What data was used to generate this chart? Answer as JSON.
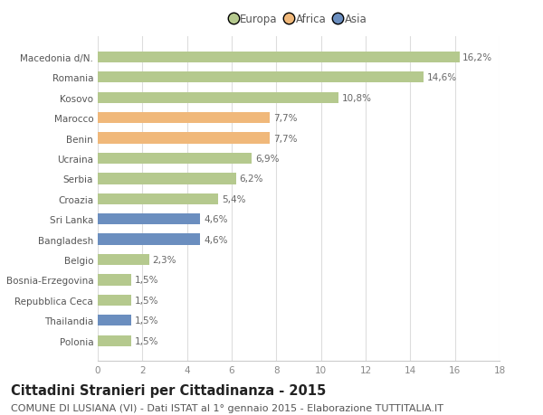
{
  "categories": [
    "Macedonia d/N.",
    "Romania",
    "Kosovo",
    "Marocco",
    "Benin",
    "Ucraina",
    "Serbia",
    "Croazia",
    "Sri Lanka",
    "Bangladesh",
    "Belgio",
    "Bosnia-Erzegovina",
    "Repubblica Ceca",
    "Thailandia",
    "Polonia"
  ],
  "values": [
    16.2,
    14.6,
    10.8,
    7.7,
    7.7,
    6.9,
    6.2,
    5.4,
    4.6,
    4.6,
    2.3,
    1.5,
    1.5,
    1.5,
    1.5
  ],
  "labels": [
    "16,2%",
    "14,6%",
    "10,8%",
    "7,7%",
    "7,7%",
    "6,9%",
    "6,2%",
    "5,4%",
    "4,6%",
    "4,6%",
    "2,3%",
    "1,5%",
    "1,5%",
    "1,5%",
    "1,5%"
  ],
  "continents": [
    "Europa",
    "Europa",
    "Europa",
    "Africa",
    "Africa",
    "Europa",
    "Europa",
    "Europa",
    "Asia",
    "Asia",
    "Europa",
    "Europa",
    "Europa",
    "Asia",
    "Europa"
  ],
  "colors": {
    "Europa": "#b5c98e",
    "Africa": "#f0b87a",
    "Asia": "#6b8ebf"
  },
  "xlim": [
    0,
    18
  ],
  "xticks": [
    0,
    2,
    4,
    6,
    8,
    10,
    12,
    14,
    16,
    18
  ],
  "title": "Cittadini Stranieri per Cittadinanza - 2015",
  "subtitle": "COMUNE DI LUSIANA (VI) - Dati ISTAT al 1° gennaio 2015 - Elaborazione TUTTITALIA.IT",
  "title_fontsize": 10.5,
  "subtitle_fontsize": 8,
  "label_fontsize": 7.5,
  "tick_fontsize": 7.5,
  "legend_fontsize": 8.5,
  "bar_height": 0.55,
  "background_color": "#ffffff",
  "grid_color": "#dddddd"
}
